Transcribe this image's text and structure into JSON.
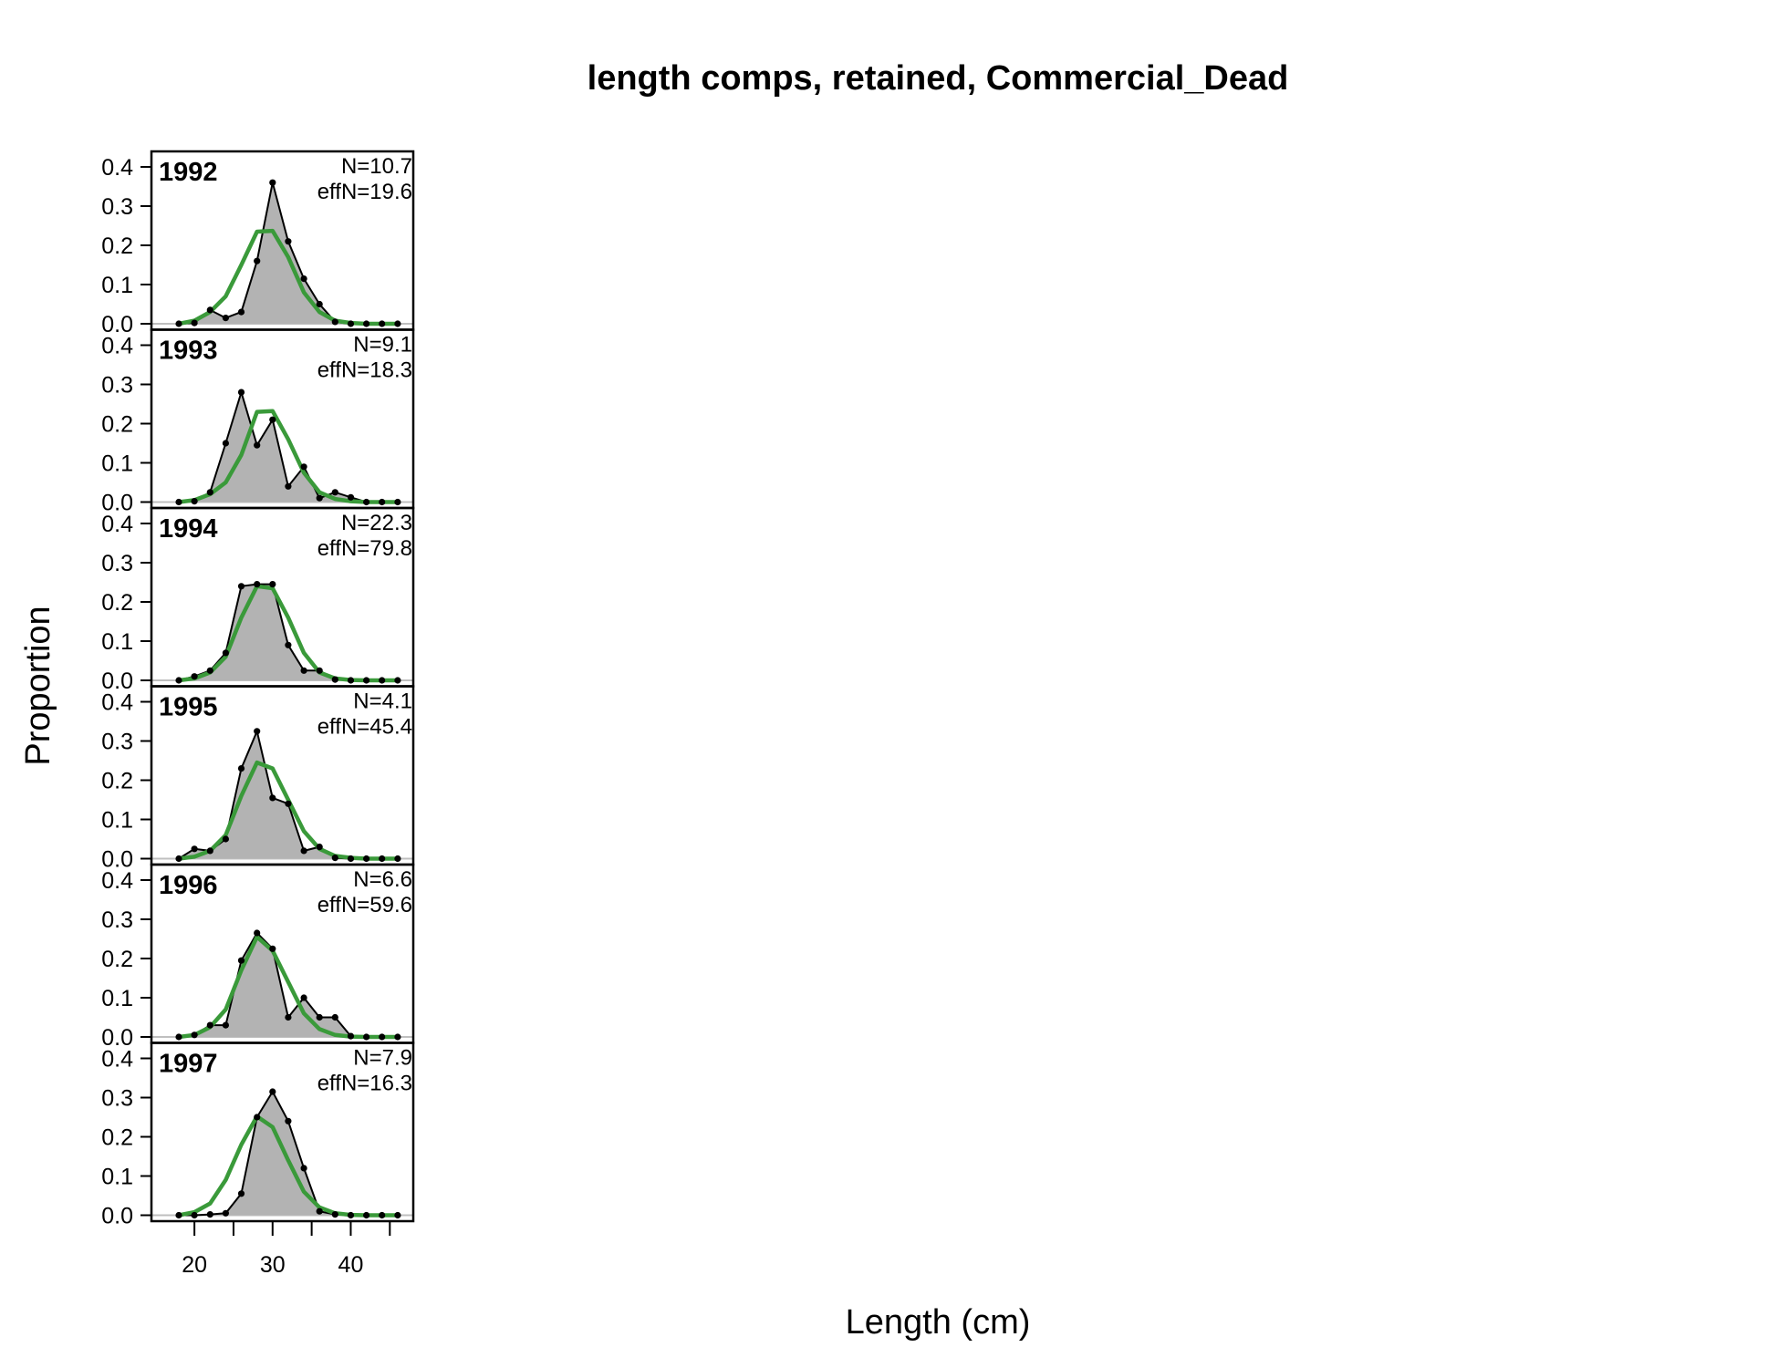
{
  "chart_data": {
    "type": "area",
    "title": "length comps, retained, Commercial_Dead",
    "xlabel": "Length (cm)",
    "ylabel": "Proportion",
    "x": [
      18,
      20,
      22,
      24,
      26,
      28,
      30,
      32,
      34,
      36,
      38,
      40,
      42,
      44,
      46
    ],
    "xlim": [
      14.5,
      48
    ],
    "ylim": [
      0,
      0.4
    ],
    "x_ticks": [
      20,
      30,
      40
    ],
    "x_tick_marks": [
      20,
      25,
      30,
      35,
      40,
      45
    ],
    "y_ticks": [
      "0.0",
      "0.1",
      "0.2",
      "0.3",
      "0.4"
    ],
    "colors": {
      "observed_fill": "#b3b3b3",
      "observed_line": "#000000",
      "expected_line": "#3a9a3a",
      "zero_line": "#bfbfbf"
    },
    "panels": [
      {
        "year": "1992",
        "n_label": "N=10.7",
        "effn_label": "effN=19.6",
        "observed": [
          0.0,
          0.002,
          0.035,
          0.015,
          0.03,
          0.16,
          0.36,
          0.21,
          0.115,
          0.05,
          0.005,
          0.0,
          0.0,
          0.0,
          0.0
        ],
        "expected": [
          0.0,
          0.008,
          0.03,
          0.07,
          0.15,
          0.235,
          0.237,
          0.17,
          0.08,
          0.03,
          0.008,
          0.002,
          0.0,
          0.0,
          0.0
        ]
      },
      {
        "year": "1993",
        "n_label": "N=9.1",
        "effn_label": "effN=18.3",
        "observed": [
          0.0,
          0.002,
          0.025,
          0.15,
          0.28,
          0.145,
          0.21,
          0.04,
          0.09,
          0.01,
          0.025,
          0.012,
          0.0,
          0.0,
          0.0
        ],
        "expected": [
          0.0,
          0.005,
          0.02,
          0.05,
          0.12,
          0.23,
          0.232,
          0.16,
          0.075,
          0.025,
          0.008,
          0.002,
          0.0,
          0.0,
          0.0
        ]
      },
      {
        "year": "1994",
        "n_label": "N=22.3",
        "effn_label": "effN=79.8",
        "observed": [
          0.0,
          0.01,
          0.025,
          0.07,
          0.24,
          0.245,
          0.245,
          0.09,
          0.025,
          0.025,
          0.002,
          0.0,
          0.0,
          0.0,
          0.0
        ],
        "expected": [
          0.0,
          0.005,
          0.02,
          0.06,
          0.16,
          0.24,
          0.235,
          0.16,
          0.07,
          0.02,
          0.005,
          0.001,
          0.0,
          0.0,
          0.0
        ]
      },
      {
        "year": "1995",
        "n_label": "N=4.1",
        "effn_label": "effN=45.4",
        "observed": [
          0.0,
          0.025,
          0.02,
          0.05,
          0.23,
          0.325,
          0.155,
          0.14,
          0.02,
          0.03,
          0.002,
          0.0,
          0.0,
          0.0,
          0.0
        ],
        "expected": [
          0.0,
          0.005,
          0.02,
          0.06,
          0.16,
          0.245,
          0.23,
          0.15,
          0.07,
          0.025,
          0.007,
          0.002,
          0.0,
          0.0,
          0.0
        ]
      },
      {
        "year": "1996",
        "n_label": "N=6.6",
        "effn_label": "effN=59.6",
        "observed": [
          0.0,
          0.005,
          0.03,
          0.03,
          0.195,
          0.265,
          0.225,
          0.05,
          0.1,
          0.05,
          0.05,
          0.002,
          0.0,
          0.0,
          0.0
        ],
        "expected": [
          0.0,
          0.005,
          0.025,
          0.07,
          0.17,
          0.255,
          0.22,
          0.14,
          0.06,
          0.02,
          0.005,
          0.001,
          0.0,
          0.0,
          0.0
        ]
      },
      {
        "year": "1997",
        "n_label": "N=7.9",
        "effn_label": "effN=16.3",
        "observed": [
          0.0,
          0.0,
          0.002,
          0.005,
          0.055,
          0.25,
          0.315,
          0.24,
          0.12,
          0.01,
          0.002,
          0.0,
          0.0,
          0.0,
          0.0
        ],
        "expected": [
          0.0,
          0.008,
          0.03,
          0.09,
          0.18,
          0.252,
          0.225,
          0.14,
          0.06,
          0.02,
          0.005,
          0.001,
          0.0,
          0.0,
          0.0
        ]
      }
    ]
  }
}
